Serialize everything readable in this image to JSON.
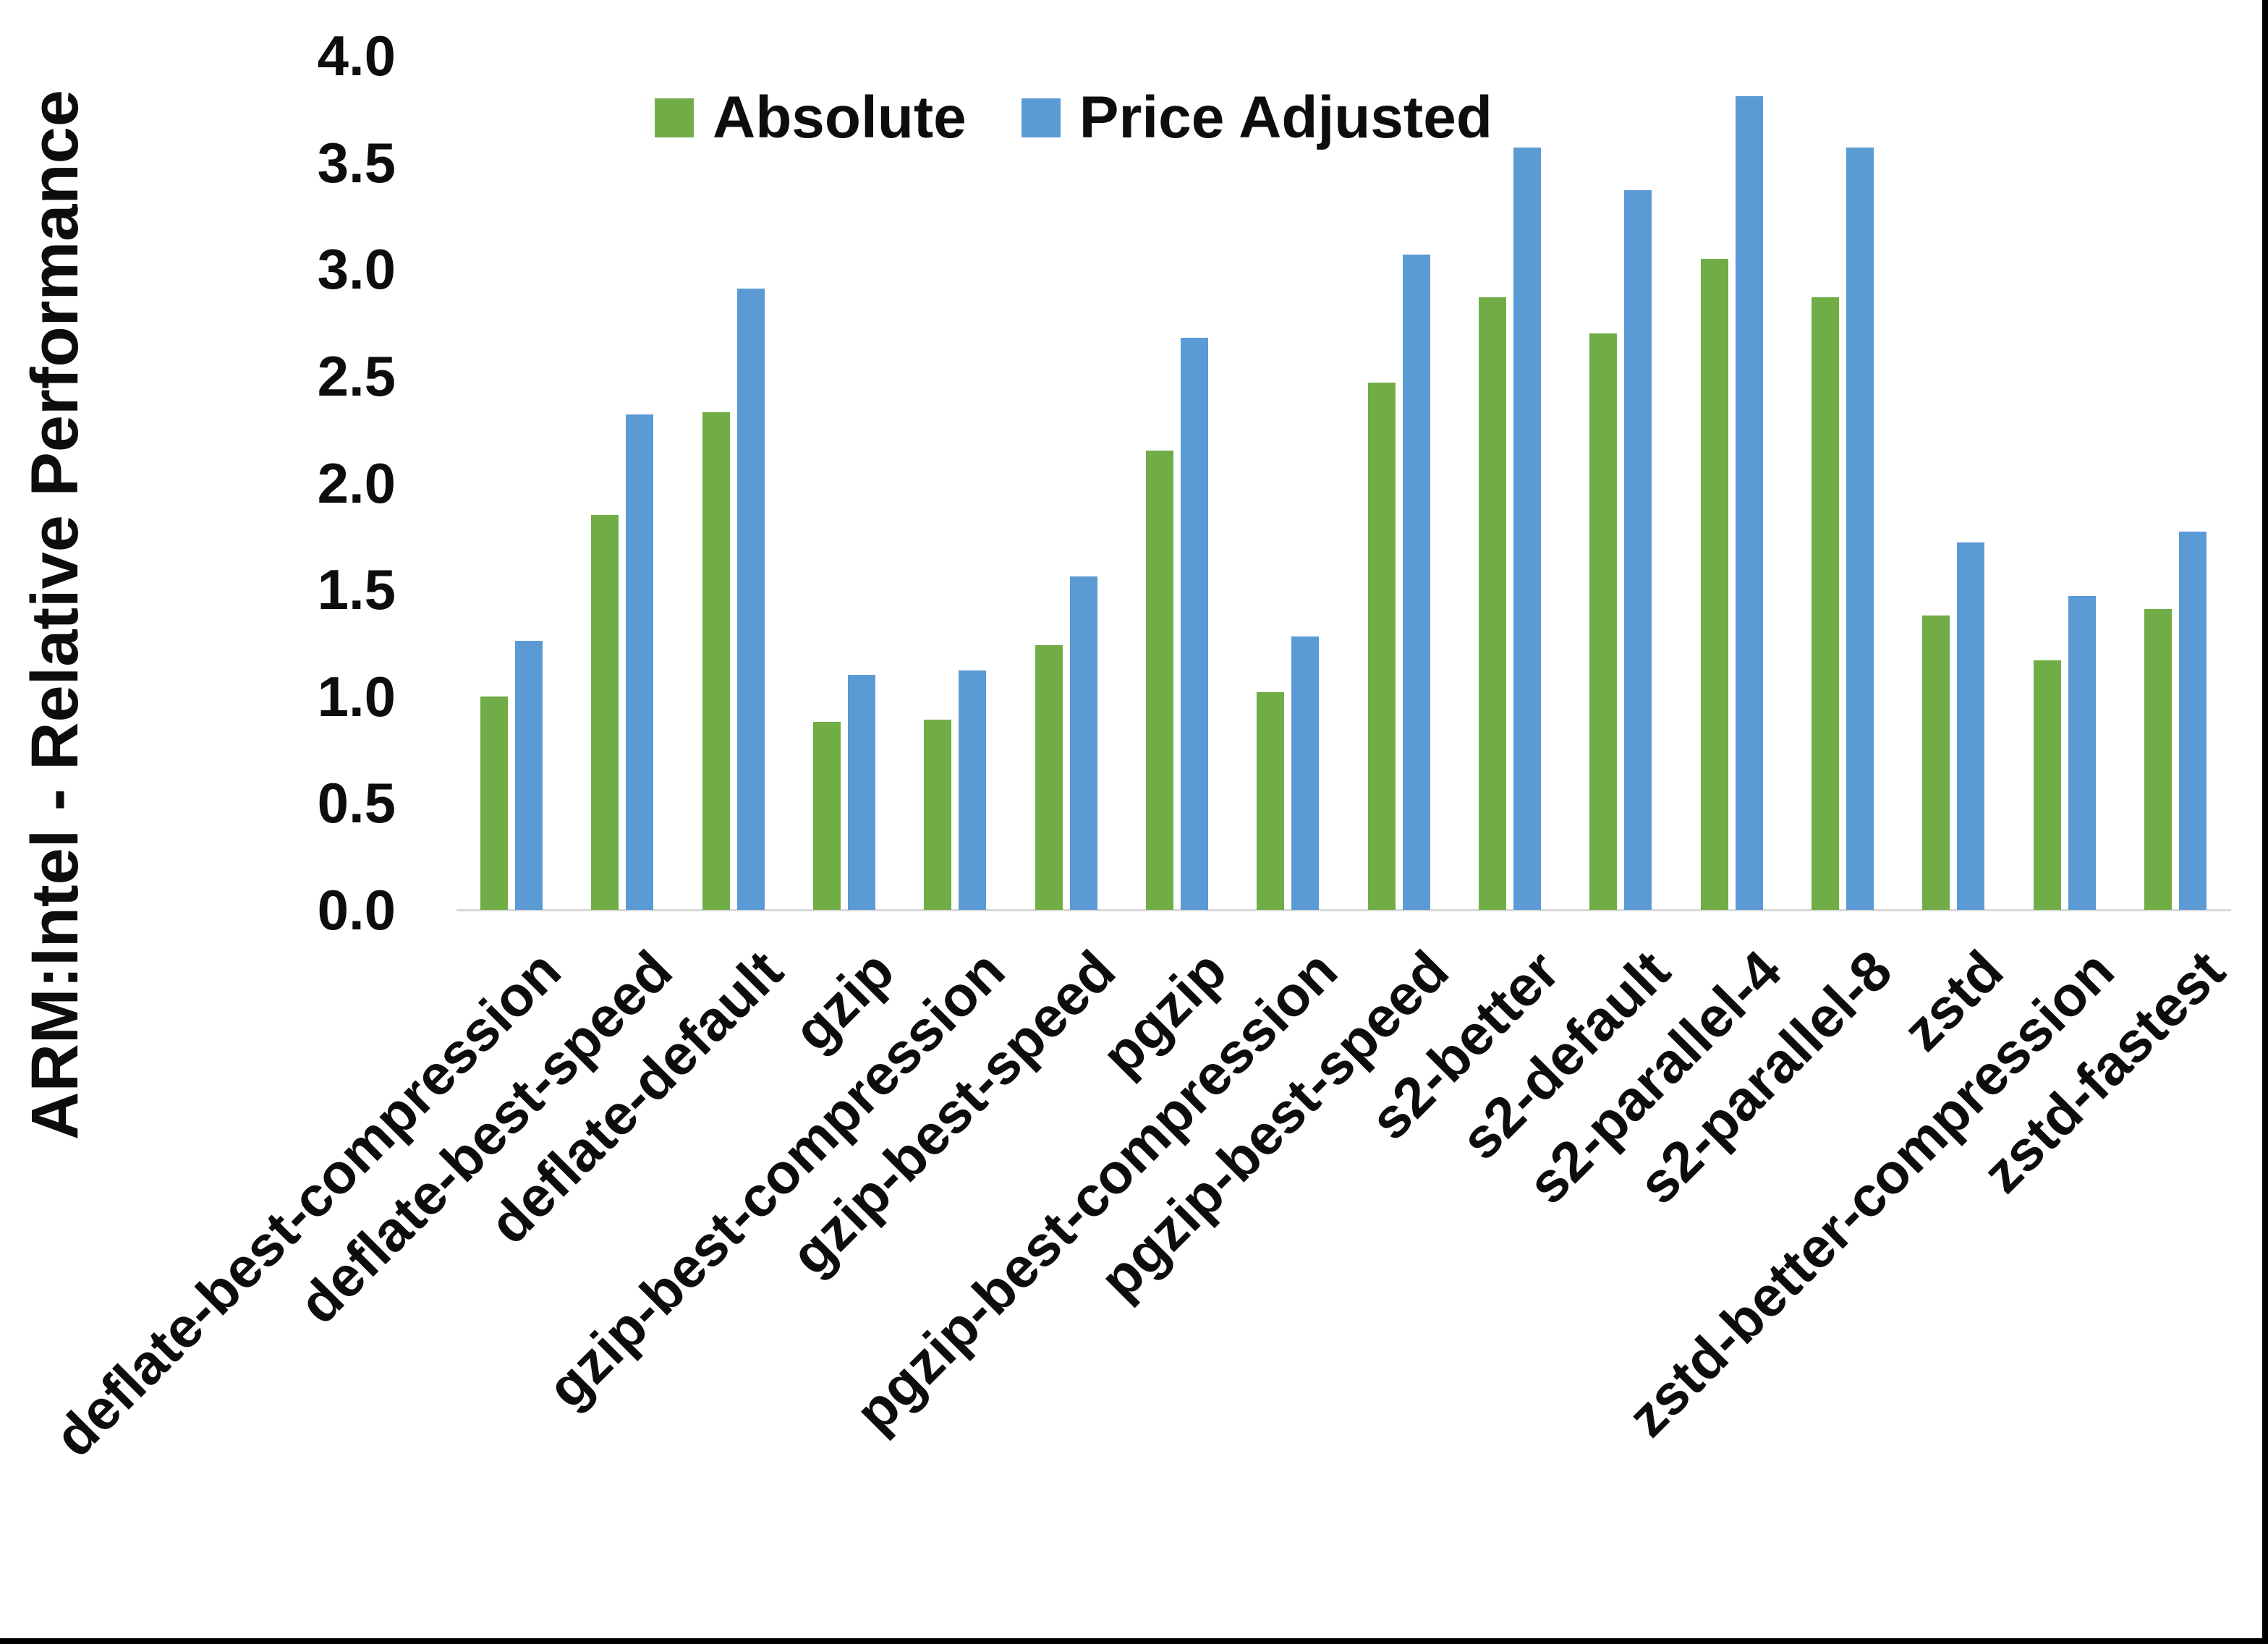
{
  "y_axis": {
    "title": "ARM:Intel - Relative Performance",
    "ticks": [
      "4.0",
      "3.5",
      "3.0",
      "2.5",
      "2.0",
      "1.5",
      "1.0",
      "0.5",
      "0.0"
    ],
    "min": 0.0,
    "max": 4.0
  },
  "legend": {
    "items": [
      {
        "label": "Absolute",
        "color": "#70AD47"
      },
      {
        "label": "Price Adjusted",
        "color": "#5B9BD5"
      }
    ]
  },
  "colors": {
    "absolute": "#70AD47",
    "price_adjusted": "#5B9BD5",
    "axis_line": "#D9D9D9",
    "text": "#0D0D0D",
    "border": "#000000"
  },
  "chart_data": {
    "type": "bar",
    "title": "",
    "xlabel": "",
    "ylabel": "ARM:Intel - Relative Performance",
    "ylim": [
      0.0,
      4.0
    ],
    "ytick_step": 0.5,
    "grid": false,
    "legend_position": "top",
    "categories": [
      "deflate-best-compression",
      "deflate-best-speed",
      "deflate-default",
      "gzip",
      "gzip-best-compression",
      "gzip-best-speed",
      "pgzip",
      "pgzip-best-compression",
      "pgzip-best-speed",
      "s2-better",
      "s2-default",
      "s2-parallel-4",
      "s2-parallel-8",
      "zstd",
      "zstd-better-compression",
      "zstd-fastest"
    ],
    "series": [
      {
        "name": "Absolute",
        "values": [
          1.0,
          1.85,
          2.33,
          0.88,
          0.89,
          1.24,
          2.15,
          1.02,
          2.47,
          2.87,
          2.7,
          3.05,
          2.87,
          1.38,
          1.17,
          1.41
        ]
      },
      {
        "name": "Price Adjusted",
        "values": [
          1.26,
          2.32,
          2.91,
          1.1,
          1.12,
          1.56,
          2.68,
          1.28,
          3.07,
          3.57,
          3.37,
          3.81,
          3.57,
          1.72,
          1.47,
          1.77
        ]
      }
    ]
  }
}
